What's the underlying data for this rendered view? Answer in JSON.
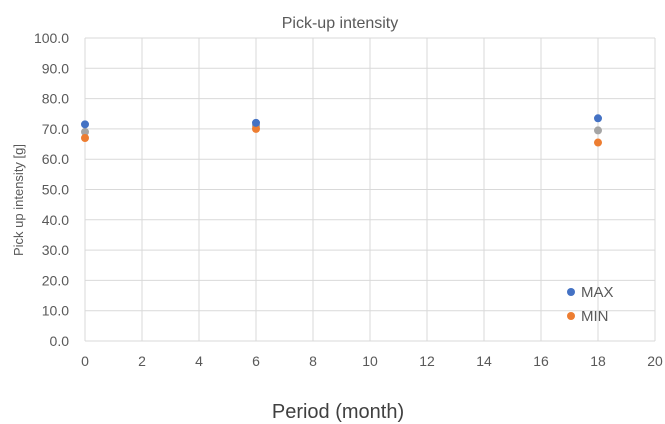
{
  "chart_data": {
    "type": "scatter",
    "title": "Pick-up intensity",
    "xlabel": "Period  (month)",
    "ylabel": "Pick up intensity  [g]",
    "xlim": [
      0,
      20
    ],
    "ylim": [
      0,
      100
    ],
    "x_ticks": [
      "0",
      "2",
      "4",
      "6",
      "8",
      "10",
      "12",
      "14",
      "16",
      "18",
      "20"
    ],
    "y_ticks": [
      "0.0",
      "10.0",
      "20.0",
      "30.0",
      "40.0",
      "50.0",
      "60.0",
      "70.0",
      "80.0",
      "90.0",
      "100.0"
    ],
    "grid": true,
    "legend_position": "bottom-right",
    "series": [
      {
        "name": "MAX",
        "color": "#4472C4",
        "points": [
          [
            0,
            71.5
          ],
          [
            6,
            72.0
          ],
          [
            18,
            73.5
          ]
        ]
      },
      {
        "name": "MIN",
        "color": "#ED7D31",
        "points": [
          [
            0,
            67.0
          ],
          [
            6,
            70.0
          ],
          [
            18,
            65.5
          ]
        ]
      },
      {
        "color": "#A5A5A5",
        "points": [
          [
            0,
            69.0
          ],
          [
            6,
            71.0
          ],
          [
            18,
            69.5
          ]
        ]
      }
    ]
  }
}
